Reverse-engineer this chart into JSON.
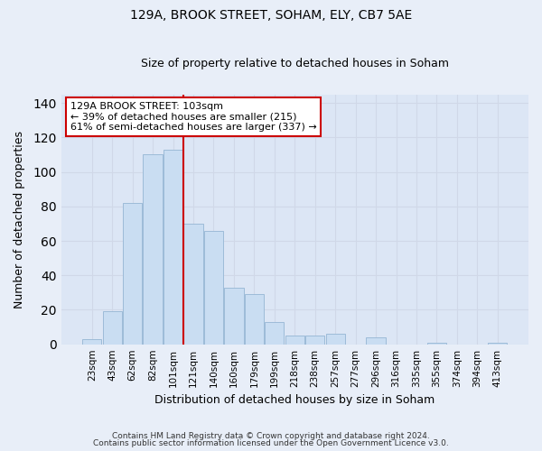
{
  "title1": "129A, BROOK STREET, SOHAM, ELY, CB7 5AE",
  "title2": "Size of property relative to detached houses in Soham",
  "xlabel": "Distribution of detached houses by size in Soham",
  "ylabel": "Number of detached properties",
  "bar_labels": [
    "23sqm",
    "43sqm",
    "62sqm",
    "82sqm",
    "101sqm",
    "121sqm",
    "140sqm",
    "160sqm",
    "179sqm",
    "199sqm",
    "218sqm",
    "238sqm",
    "257sqm",
    "277sqm",
    "296sqm",
    "316sqm",
    "335sqm",
    "355sqm",
    "374sqm",
    "394sqm",
    "413sqm"
  ],
  "bar_values": [
    3,
    19,
    82,
    110,
    113,
    70,
    66,
    33,
    29,
    13,
    5,
    5,
    6,
    0,
    4,
    0,
    0,
    1,
    0,
    0,
    1
  ],
  "bar_color": "#c9ddf2",
  "bar_edgecolor": "#9dbbd8",
  "vline_color": "#cc0000",
  "annotation_title": "129A BROOK STREET: 103sqm",
  "annotation_line2": "← 39% of detached houses are smaller (215)",
  "annotation_line3": "61% of semi-detached houses are larger (337) →",
  "annotation_box_edgecolor": "#cc0000",
  "ylim": [
    0,
    145
  ],
  "yticks": [
    0,
    20,
    40,
    60,
    80,
    100,
    120,
    140
  ],
  "footer1": "Contains HM Land Registry data © Crown copyright and database right 2024.",
  "footer2": "Contains public sector information licensed under the Open Government Licence v3.0.",
  "background_color": "#e8eef8",
  "grid_color": "#d0d8e8",
  "plot_bg_color": "#dce6f5"
}
